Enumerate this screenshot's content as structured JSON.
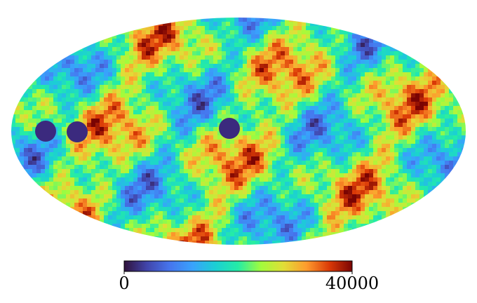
{
  "chart_data": {
    "type": "map",
    "colorbar": {
      "lim": [
        0,
        40000
      ],
      "ticks": [
        0,
        40000
      ]
    }
  }
}
